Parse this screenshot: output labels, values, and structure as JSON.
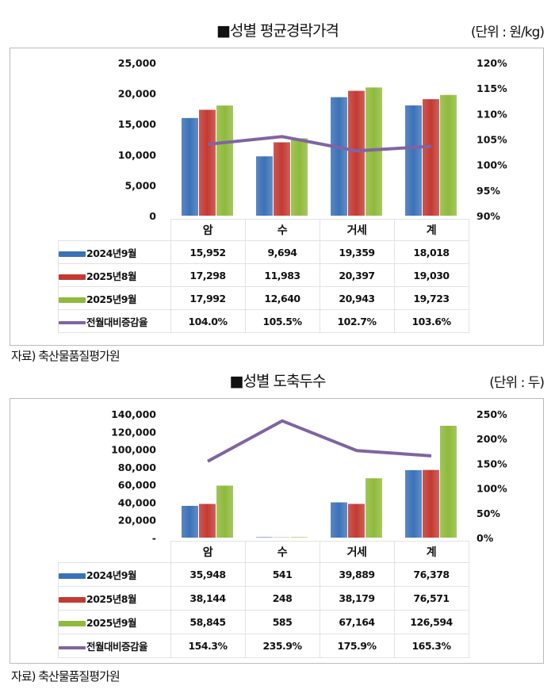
{
  "colors": {
    "s2024_9": "#3b72b8",
    "s2025_8": "#c33a33",
    "s2025_9": "#8fba3c",
    "rate": "#8064a2"
  },
  "chart_data": [
    {
      "type": "bar",
      "title": "■성별 평균경락가격",
      "unit": "(단위 : 원/kg)",
      "source": "자료) 축산물품질평가원",
      "categories": [
        "암",
        "수",
        "거세",
        "계"
      ],
      "series": [
        {
          "name": "2024년9월",
          "values": [
            15952,
            9694,
            19359,
            18018
          ],
          "display": [
            "15,952",
            "9,694",
            "19,359",
            "18,018"
          ]
        },
        {
          "name": "2025년8월",
          "values": [
            17298,
            11983,
            20397,
            19030
          ],
          "display": [
            "17,298",
            "11,983",
            "20,397",
            "19,030"
          ]
        },
        {
          "name": "2025년9월",
          "values": [
            17992,
            12640,
            20943,
            19723
          ],
          "display": [
            "17,992",
            "12,640",
            "20,943",
            "19,723"
          ]
        }
      ],
      "line": {
        "name": "전월대비증감율",
        "values": [
          104.0,
          105.5,
          102.7,
          103.6
        ],
        "display": [
          "104.0%",
          "105.5%",
          "102.7%",
          "103.6%"
        ]
      },
      "ylim": [
        0,
        25000
      ],
      "yticks": [
        "0",
        "5,000",
        "10,000",
        "15,000",
        "20,000",
        "25,000"
      ],
      "y2lim": [
        90,
        120
      ],
      "y2ticks": [
        "90%",
        "95%",
        "100%",
        "105%",
        "110%",
        "115%",
        "120%"
      ],
      "grid": false,
      "legend": "data-table"
    },
    {
      "type": "bar",
      "title": "■성별 도축두수",
      "unit": "(단위 : 두)",
      "source": "자료) 축산물품질평가원",
      "categories": [
        "암",
        "수",
        "거세",
        "계"
      ],
      "series": [
        {
          "name": "2024년9월",
          "values": [
            35948,
            541,
            39889,
            76378
          ],
          "display": [
            "35,948",
            "541",
            "39,889",
            "76,378"
          ]
        },
        {
          "name": "2025년8월",
          "values": [
            38144,
            248,
            38179,
            76571
          ],
          "display": [
            "38,144",
            "248",
            "38,179",
            "76,571"
          ]
        },
        {
          "name": "2025년9월",
          "values": [
            58845,
            585,
            67164,
            126594
          ],
          "display": [
            "58,845",
            "585",
            "67,164",
            "126,594"
          ]
        }
      ],
      "line": {
        "name": "전월대비증감율",
        "values": [
          154.3,
          235.9,
          175.9,
          165.3
        ],
        "display": [
          "154.3%",
          "235.9%",
          "175.9%",
          "165.3%"
        ]
      },
      "ylim": [
        0,
        140000
      ],
      "yticks": [
        "-",
        "20,000",
        "40,000",
        "60,000",
        "80,000",
        "100,000",
        "120,000",
        "140,000"
      ],
      "y2lim": [
        0,
        250
      ],
      "y2ticks": [
        "0%",
        "50%",
        "100%",
        "150%",
        "200%",
        "250%"
      ],
      "grid": false,
      "legend": "data-table"
    }
  ]
}
